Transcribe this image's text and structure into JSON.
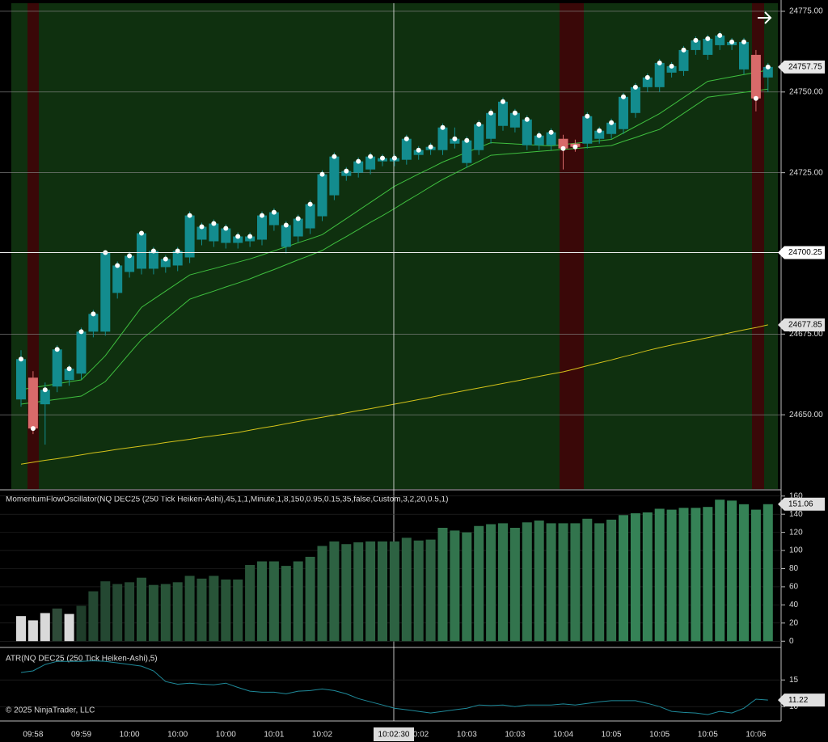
{
  "chart_data": [
    {
      "type": "candlestick",
      "categories": [
        null,
        "09:58",
        null,
        null,
        null,
        "09:59",
        null,
        null,
        null,
        "10:00",
        null,
        null,
        null,
        "10:00",
        null,
        null,
        null,
        "10:00",
        null,
        null,
        null,
        "10:01",
        null,
        null,
        null,
        "10:02",
        null,
        null,
        null,
        null,
        null,
        null,
        null,
        "10:02",
        null,
        null,
        null,
        "10:03",
        null,
        null,
        null,
        "10:03",
        null,
        null,
        null,
        "10:04",
        null,
        null,
        null,
        "10:05",
        null,
        null,
        null,
        "10:05",
        null,
        null,
        null,
        "10:05",
        null,
        null,
        null,
        "10:06",
        null
      ],
      "open": [
        24654.75,
        24661.5,
        24653.25,
        24658.75,
        24660.75,
        24662.75,
        24675.75,
        24675.75,
        24687.75,
        24694.25,
        24695.25,
        24695.25,
        24695.75,
        24696.25,
        24698.75,
        24704.25,
        24703.75,
        24703.25,
        24703.25,
        24703.75,
        24704.25,
        24708.75,
        24702,
        24705.25,
        24707.75,
        24711.5,
        24718,
        24724,
        24725,
        24726,
        24728.5,
        24728.5,
        24729,
        24730.5,
        24732,
        24732,
        24734,
        24728,
        24732,
        24735.5,
        24739.5,
        24739,
        24733.5,
        24733.5,
        24733.5,
        24735.5,
        24734,
        24734,
        24735.5,
        24737,
        24738.5,
        24743.5,
        24751.5,
        24751.5,
        24756,
        24756.5,
        24763,
        24761.5,
        24764.5,
        24764.5,
        24757,
        24761.5,
        24754.5
      ],
      "close": [
        24667.25,
        24645.75,
        24657.75,
        24670.25,
        24664.25,
        24675.75,
        24681.25,
        24700.25,
        24696.25,
        24699.25,
        24706.25,
        24700.75,
        24698.25,
        24700.75,
        24711.75,
        24708.25,
        24709.25,
        24707.75,
        24705.25,
        24705.25,
        24711.75,
        24712.75,
        24708.75,
        24710.75,
        24715.25,
        24724.5,
        24730,
        24725.5,
        24728.5,
        24730,
        24729.5,
        24729.5,
        24735.5,
        24732,
        24733,
        24739,
        24735.5,
        24735,
        24740,
        24743.5,
        24747,
        24743.5,
        24741.5,
        24736.5,
        24737.5,
        24732.5,
        24733,
        24742.5,
        24738,
        24740.5,
        24748.5,
        24751.5,
        24754.5,
        24759,
        24758,
        24763,
        24766,
        24766.5,
        24767.5,
        24765.5,
        24765.5,
        24748,
        24757.75
      ],
      "high": [
        24670,
        24663.5,
        24660,
        24671.5,
        24665.5,
        24677,
        24682.5,
        24701,
        24697.5,
        24700.5,
        24707,
        24702,
        24699.5,
        24702,
        24713,
        24709.5,
        24710.5,
        24709,
        24706.5,
        24706.5,
        24713,
        24714,
        24710,
        24712,
        24716.5,
        24725.75,
        24731.25,
        24726.75,
        24729.75,
        24731.25,
        24730.75,
        24730.75,
        24736.75,
        24733.25,
        24734.25,
        24740.25,
        24739,
        24736.25,
        24741.25,
        24744.75,
        24748.25,
        24744.75,
        24742.75,
        24737.75,
        24738.75,
        24736.75,
        24735.25,
        24743.75,
        24739.25,
        24741.75,
        24749.75,
        24752.75,
        24755.75,
        24760.25,
        24759.25,
        24764.25,
        24767.25,
        24767.75,
        24768.75,
        24766.75,
        24766.75,
        24763,
        24759
      ],
      "low": [
        24652.5,
        24644,
        24640.75,
        24657,
        24659,
        24661,
        24674,
        24674.5,
        24686,
        24692.5,
        24693.5,
        24693.5,
        24694,
        24694.5,
        24697,
        24702.5,
        24702,
        24701.5,
        24701.5,
        24702,
        24702.5,
        24707,
        24700,
        24703.5,
        24706,
        24710,
        24716.5,
        24722.5,
        24723.5,
        24724.5,
        24727,
        24727,
        24727.5,
        24729,
        24730.5,
        24730.5,
        24732.5,
        24726.5,
        24730.5,
        24734,
        24738,
        24737.5,
        24732,
        24732,
        24732,
        24726,
        24731.5,
        24732.5,
        24734,
        24735.5,
        24737,
        24742,
        24750,
        24750,
        24754.5,
        24755,
        24761.5,
        24760,
        24763,
        24763,
        24755.5,
        24744,
        24750
      ],
      "up_color": "#138c8e",
      "down_color": "#d86a6a",
      "lines": [
        {
          "color": "#3fbf3f",
          "values": [
            24657.8,
            24658.4,
            24659,
            24659.6,
            24660.2,
            24660.8,
            24664.5,
            24668.3,
            24673.3,
            24678.3,
            24683.3,
            24685.8,
            24688.3,
            24690.8,
            24693.3,
            24694.3,
            24695.3,
            24696.3,
            24697.3,
            24698.3,
            24699.5,
            24700.8,
            24702,
            24703.3,
            24704.5,
            24705.8,
            24708.3,
            24710.8,
            24713.3,
            24715.8,
            24718.3,
            24720.8,
            24722.7,
            24724.6,
            24726.4,
            24728.3,
            24729.8,
            24731.3,
            24732.8,
            24734.3,
            24734.1,
            24733.9,
            24733.7,
            24733.5,
            24733.3,
            24733.7,
            24734.1,
            24734.5,
            24734.9,
            24735.3,
            24737.3,
            24739.3,
            24741.3,
            24743.3,
            24745.8,
            24748.3,
            24750.8,
            24753.3,
            24754,
            24754.7,
            24755.4,
            24756.1,
            24756.8
          ]
        },
        {
          "color": "#3fbf3f",
          "values": [
            24653.3,
            24653.8,
            24654.3,
            24654.8,
            24655.3,
            24655.8,
            24658,
            24660.3,
            24664.6,
            24669,
            24673.3,
            24676.4,
            24679.6,
            24682.7,
            24685.8,
            24687.1,
            24688.3,
            24689.6,
            24690.8,
            24692.1,
            24693.6,
            24695,
            24696.5,
            24698,
            24699.4,
            24700.9,
            24703.1,
            24705.2,
            24707.4,
            24709.6,
            24711.7,
            24713.9,
            24716.2,
            24718.4,
            24720.7,
            24722.9,
            24724.8,
            24726.7,
            24728.5,
            24730.4,
            24730.7,
            24731,
            24731.3,
            24731.6,
            24731.9,
            24732.2,
            24732.5,
            24732.8,
            24733.1,
            24733.4,
            24734.7,
            24735.9,
            24737.2,
            24738.4,
            24740.9,
            24743.4,
            24745.9,
            24748.4,
            24748.9,
            24749.4,
            24749.9,
            24750.4,
            24750.9
          ]
        },
        {
          "color": "#d4c21a",
          "values": [
            24634.7,
            24635.3,
            24635.9,
            24636.4,
            24637,
            24637.6,
            24638.2,
            24638.7,
            24639.3,
            24639.8,
            24640.3,
            24640.8,
            24641.4,
            24641.9,
            24642.4,
            24643,
            24643.5,
            24644,
            24644.5,
            24645.2,
            24645.9,
            24646.5,
            24647.2,
            24647.9,
            24648.6,
            24649.2,
            24649.9,
            24650.6,
            24651.3,
            24651.9,
            24652.6,
            24653.3,
            24654,
            24654.7,
            24655.4,
            24656.2,
            24656.9,
            24657.6,
            24658.3,
            24659,
            24659.7,
            24660.4,
            24661.1,
            24661.9,
            24662.6,
            24663.3,
            24664.2,
            24665.2,
            24666.1,
            24667,
            24668,
            24668.9,
            24669.9,
            24670.8,
            24671.6,
            24672.4,
            24673.1,
            24673.9,
            24674.7,
            24675.5,
            24676.3,
            24677,
            24677.85
          ]
        }
      ],
      "ylim": [
        24627,
        24777.5
      ],
      "yticks": [
        {
          "value": 24650,
          "label": "24650.00"
        },
        {
          "value": 24675,
          "label": "24675.00"
        },
        {
          "value": 24725,
          "label": "24725.00"
        },
        {
          "value": 24750,
          "label": "24750.00"
        },
        {
          "value": 24775,
          "label": "24775.00"
        }
      ],
      "grid": true,
      "price_markers": [
        {
          "value": 24757.75,
          "label": "24757.75"
        },
        {
          "value": 24700.25,
          "label": "24700.25"
        },
        {
          "value": 24677.85,
          "label": "24677.85"
        }
      ],
      "crosshair_time": "10:02:30"
    },
    {
      "type": "bar",
      "title": "MomentumFlowOscillator(NQ DEC25 (250 Tick Heiken-Ashi),45,1,1,Minute,1,8,150,0.95,0.15,35,false,Custom,3,2,20,0.5,1)",
      "values": [
        27.7,
        23,
        31,
        36,
        30,
        39,
        55,
        66,
        63,
        65,
        70,
        62,
        63,
        65,
        72,
        69,
        72,
        68,
        68,
        84,
        88,
        88,
        83,
        88,
        93,
        105,
        110,
        107,
        109,
        110,
        110,
        110,
        114,
        111,
        112,
        125,
        122,
        120,
        127,
        129,
        130,
        125,
        131,
        133,
        130,
        130,
        130,
        135,
        130,
        134,
        139,
        141,
        142,
        146,
        145,
        147,
        147,
        148,
        156,
        155,
        151,
        145,
        151.06
      ],
      "colors": [
        "#d9d9d9",
        "#d9d9d9",
        "#d9d9d9",
        "#2e4a38",
        "#d9d9d9",
        "#1f3d2a",
        "#244832",
        "#244832",
        "#244832",
        "#244832",
        "#285438",
        "#285438",
        "#285438",
        "#285438",
        "#285438",
        "#285438",
        "#285438",
        "#285438",
        "#285438",
        "#285438",
        "#2d6242",
        "#2d6242",
        "#2d6242",
        "#2d6242",
        "#2d6242",
        "#2d6242",
        "#2d6242",
        "#2d6242",
        "#2d6242",
        "#2d6242",
        "#2d6242",
        "#2d6242",
        "#2d6242",
        "#2d6242",
        "#2d6242",
        "#32744d",
        "#32744d",
        "#32744d",
        "#32744d",
        "#32744d",
        "#32744d",
        "#32744d",
        "#32744d",
        "#32744d",
        "#32744d",
        "#32744d",
        "#32744d",
        "#32744d",
        "#32744d",
        "#32744d",
        "#358256",
        "#358256",
        "#358256",
        "#358256",
        "#358256",
        "#358256",
        "#358256",
        "#358256",
        "#358256",
        "#358256",
        "#358256",
        "#358256",
        "#358256"
      ],
      "ylim": [
        -6,
        166
      ],
      "yticks": [
        0,
        20,
        40,
        60,
        80,
        100,
        120,
        140,
        160
      ],
      "last_marker": {
        "value": 151.06,
        "label": "151.06"
      }
    },
    {
      "type": "line",
      "title": "ATR(NQ DEC25 (250 Tick Heiken-Ashi),5)",
      "values": [
        16.4,
        16.7,
        17.9,
        18.5,
        18.5,
        18.5,
        18.6,
        18.5,
        18.2,
        17.9,
        17.6,
        16.7,
        14.7,
        14.2,
        14.4,
        14.2,
        14.1,
        14.4,
        13.6,
        12.9,
        12.7,
        12.7,
        12.4,
        12.9,
        13,
        13.3,
        13,
        12.4,
        11.5,
        10.9,
        10.3,
        9.7,
        9.4,
        9.1,
        8.8,
        9.1,
        9.4,
        9.7,
        10.3,
        10.2,
        10.3,
        10,
        10.3,
        10.3,
        10.3,
        10.5,
        10.3,
        10.6,
        10.9,
        11.1,
        11.1,
        11.1,
        10.6,
        10,
        9.1,
        8.9,
        8.8,
        8.5,
        9.1,
        8.8,
        9.7,
        11.4,
        11.22
      ],
      "color": "#1f8a9a",
      "ylim": [
        7.6,
        20.8
      ],
      "yticks": [
        10,
        15
      ],
      "last_marker": {
        "value": 11.22,
        "label": "11.22"
      }
    }
  ],
  "footer": "© 2025 NinjaTrader, LLC"
}
